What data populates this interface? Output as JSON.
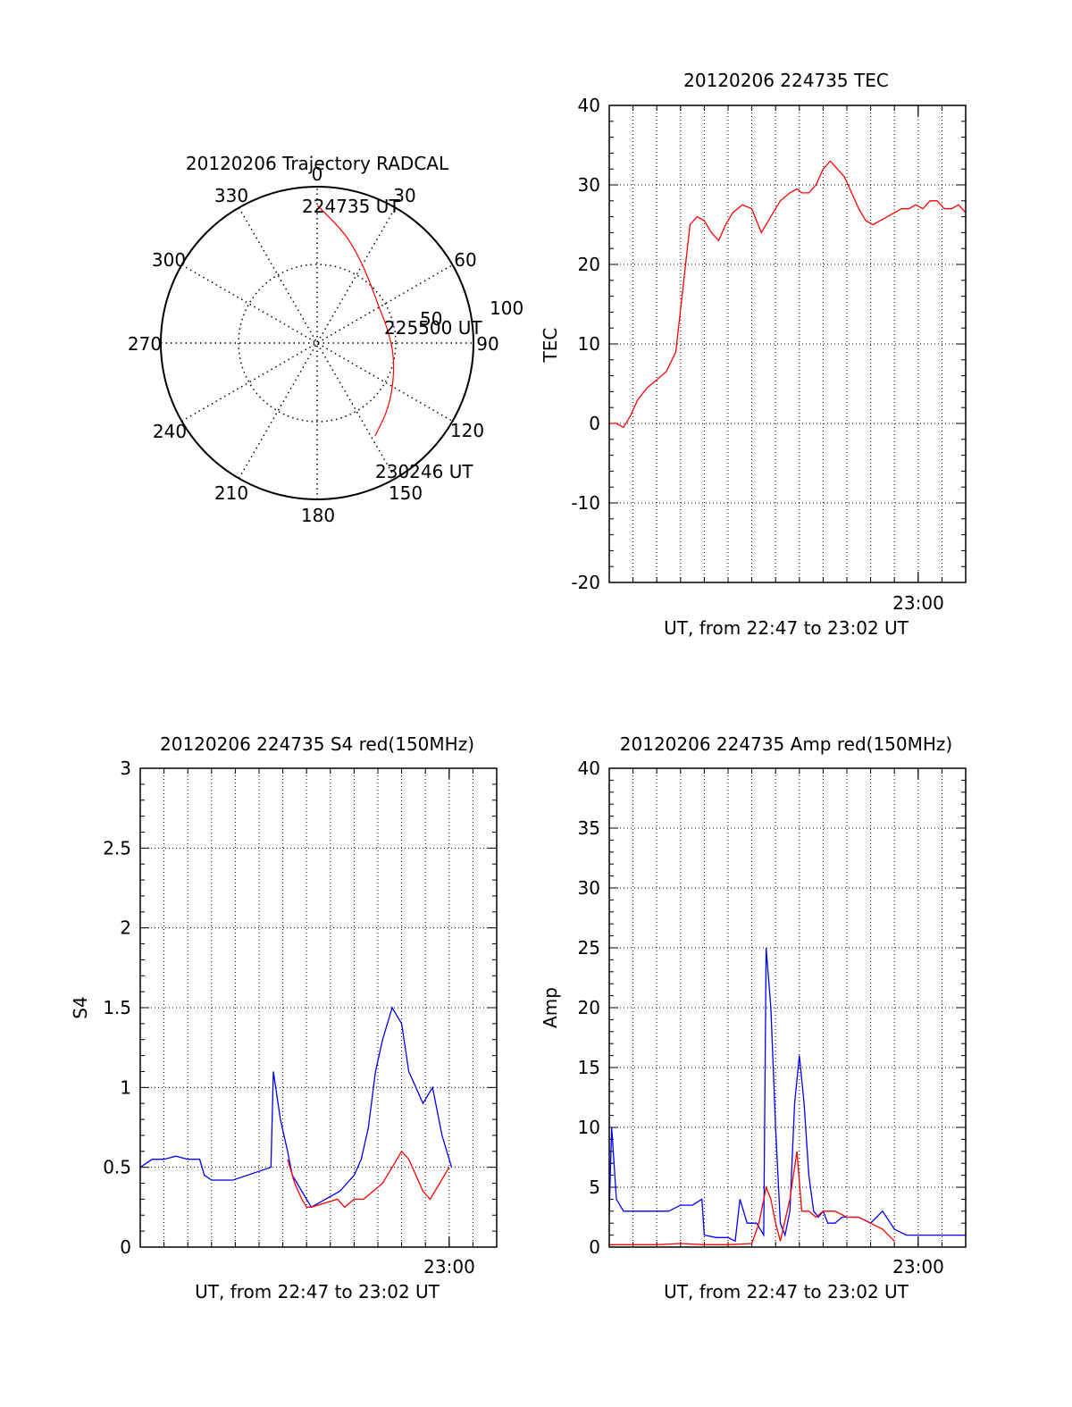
{
  "chart_data": [
    {
      "type": "polar-trajectory",
      "title": "20120206 Trajectory RADCAL",
      "azimuth_labels": [
        "0",
        "30",
        "60",
        "90",
        "120",
        "150",
        "180",
        "210",
        "240",
        "270",
        "300",
        "330"
      ],
      "radial_labels": [
        "50",
        "100"
      ],
      "grid": "dotted",
      "trajectory": {
        "color": "#ff0000",
        "start_label": "224735 UT",
        "mid_label": "225500 UT",
        "end_label": "230246 UT",
        "points": [
          [
            0,
            88
          ],
          [
            12,
            75
          ],
          [
            25,
            62
          ],
          [
            40,
            52
          ],
          [
            58,
            46
          ],
          [
            78,
            46
          ],
          [
            100,
            50
          ],
          [
            120,
            56
          ],
          [
            135,
            63
          ],
          [
            148,
            70
          ]
        ]
      }
    },
    {
      "type": "line",
      "title": "20120206 224735 TEC",
      "ylabel": "TEC",
      "xlabel": "UT, from 22:47 to 23:02 UT",
      "x_tick_label": "23:00",
      "ylim": [
        -20,
        40
      ],
      "y_ticks": [
        "-20",
        "-10",
        "0",
        "10",
        "20",
        "30",
        "40"
      ],
      "grid": "dotted",
      "series": [
        {
          "color": "#ff0000",
          "x": [
            0.0,
            0.3,
            0.6,
            0.9,
            1.2,
            1.6,
            2.0,
            2.4,
            2.8,
            3.1,
            3.4,
            3.7,
            4.0,
            4.3,
            4.6,
            4.9,
            5.2,
            5.6,
            6.0,
            6.4,
            6.8,
            7.2,
            7.6,
            7.9,
            8.1,
            8.4,
            8.7,
            9.0,
            9.3,
            9.6,
            9.9,
            10.2,
            10.5,
            10.8,
            11.1,
            11.4,
            11.7,
            12.0,
            12.3,
            12.6,
            12.9,
            13.2,
            13.5,
            13.8,
            14.1,
            14.4,
            14.7,
            15.0
          ],
          "y": [
            0,
            0,
            -0.5,
            1,
            3,
            4.5,
            5.5,
            6.5,
            9,
            17,
            25,
            26,
            25.5,
            24,
            23,
            25,
            26.5,
            27.5,
            27,
            24,
            26,
            28,
            29,
            29.5,
            29,
            29,
            30,
            32,
            33,
            32,
            31,
            29,
            27,
            25.5,
            25,
            25.5,
            26,
            26.5,
            27,
            27,
            27.5,
            27,
            28,
            28,
            27,
            27,
            27.5,
            26.5
          ]
        }
      ]
    },
    {
      "type": "line",
      "title": "20120206 224735 S4 red(150MHz)",
      "ylabel": "S4",
      "xlabel": "UT, from 22:47 to 23:02 UT",
      "x_tick_label": "23:00",
      "ylim": [
        0,
        3
      ],
      "y_ticks": [
        "0",
        "0.5",
        "1",
        "1.5",
        "2",
        "2.5",
        "3"
      ],
      "grid": "dotted",
      "series": [
        {
          "color": "#0000ff",
          "x": [
            0.0,
            0.5,
            1.0,
            1.5,
            2.0,
            2.5,
            2.7,
            3.0,
            3.5,
            3.9,
            5.5,
            5.6,
            5.9,
            6.2,
            6.4,
            6.6,
            6.8,
            7.0,
            7.2,
            8.4,
            8.7,
            9.0,
            9.3,
            9.6,
            9.9,
            10.2,
            10.6,
            11.0,
            11.3,
            11.6,
            11.9,
            12.3,
            12.7,
            13.1
          ],
          "y": [
            0.5,
            0.55,
            0.55,
            0.57,
            0.55,
            0.55,
            0.45,
            0.42,
            0.42,
            0.42,
            0.5,
            1.1,
            0.8,
            0.6,
            0.45,
            0.4,
            0.35,
            0.3,
            0.25,
            0.35,
            0.4,
            0.45,
            0.55,
            0.75,
            1.1,
            1.3,
            1.5,
            1.4,
            1.1,
            1.0,
            0.9,
            1.0,
            0.7,
            0.5
          ]
        },
        {
          "color": "#ff0000",
          "x": [
            6.2,
            6.5,
            6.8,
            7.0,
            7.2,
            8.3,
            8.6,
            9.0,
            9.4,
            9.8,
            10.2,
            10.6,
            11.0,
            11.3,
            11.6,
            11.9,
            12.2,
            12.6,
            13.0
          ],
          "y": [
            0.55,
            0.4,
            0.3,
            0.25,
            0.25,
            0.3,
            0.25,
            0.3,
            0.3,
            0.35,
            0.4,
            0.5,
            0.6,
            0.55,
            0.45,
            0.35,
            0.3,
            0.4,
            0.5
          ]
        }
      ]
    },
    {
      "type": "line",
      "title": "20120206 224735 Amp red(150MHz)",
      "ylabel": "Amp",
      "xlabel": "UT, from 22:47 to 23:02 UT",
      "x_tick_label": "23:00",
      "ylim": [
        0,
        40
      ],
      "y_ticks": [
        "0",
        "5",
        "10",
        "15",
        "20",
        "25",
        "30",
        "35",
        "40"
      ],
      "grid": "dotted",
      "series": [
        {
          "color": "#0000ff",
          "x": [
            0.0,
            0.1,
            0.3,
            0.6,
            1.0,
            1.5,
            2.0,
            2.5,
            3.0,
            3.5,
            3.9,
            4.0,
            4.5,
            5.0,
            5.3,
            5.5,
            5.8,
            6.2,
            6.5,
            6.6,
            6.8,
            7.0,
            7.2,
            7.4,
            7.6,
            7.8,
            8.0,
            8.2,
            8.4,
            8.6,
            8.8,
            9.0,
            9.2,
            9.5,
            9.8,
            10.0,
            10.5,
            11.0,
            11.5,
            12.0,
            12.5,
            13.0,
            13.5,
            14.0,
            14.5,
            15.0
          ],
          "y": [
            3,
            10,
            4,
            3,
            3,
            3,
            3,
            3,
            3.5,
            3.5,
            4,
            1,
            0.8,
            0.8,
            0.5,
            4,
            2,
            2,
            1,
            25,
            20,
            10,
            2,
            1,
            3,
            12,
            16,
            12,
            6,
            3,
            2.5,
            3,
            2,
            2,
            2.5,
            2.5,
            2.5,
            2,
            3,
            1.5,
            1,
            1,
            1,
            1,
            1,
            1
          ]
        },
        {
          "color": "#ff0000",
          "x": [
            0.0,
            1.0,
            2.0,
            3.0,
            4.0,
            5.0,
            6.0,
            6.3,
            6.6,
            6.8,
            7.0,
            7.2,
            7.6,
            7.9,
            8.1,
            8.4,
            8.7,
            9.0,
            9.5,
            10.0,
            10.5,
            11.0,
            11.5,
            12.0
          ],
          "y": [
            0.2,
            0.2,
            0.2,
            0.3,
            0.2,
            0.2,
            0.3,
            2,
            5,
            4,
            2,
            0.5,
            4,
            8,
            3,
            3,
            2.5,
            3,
            3,
            2.5,
            2.5,
            2,
            1.5,
            0.5
          ]
        }
      ]
    }
  ]
}
